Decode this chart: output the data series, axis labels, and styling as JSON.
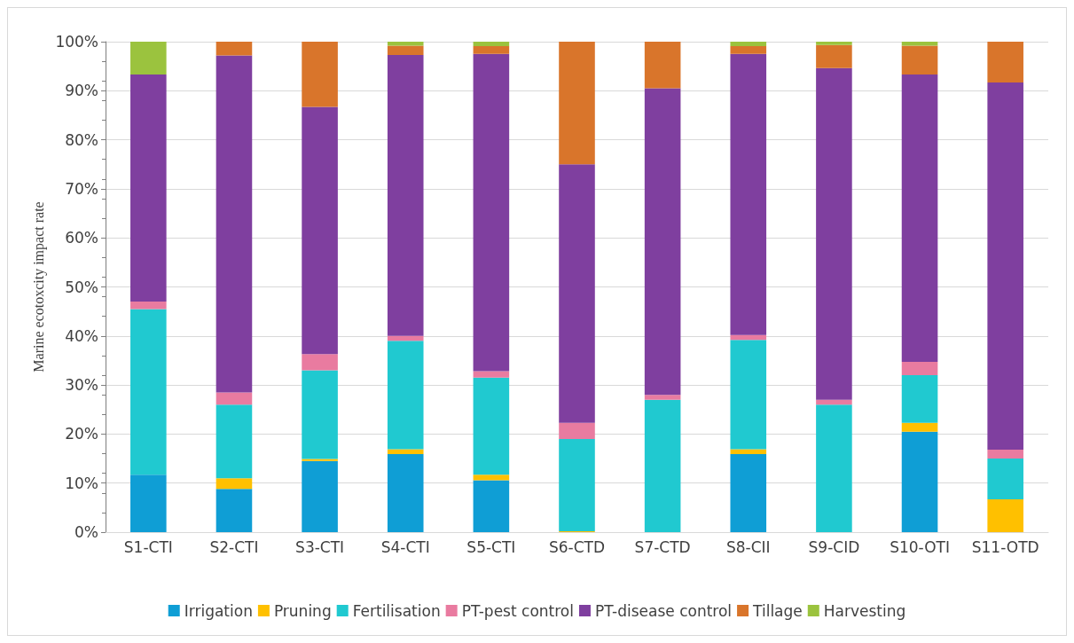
{
  "chart_data": {
    "type": "bar",
    "stacked": true,
    "ylabel": "Marine ecotoxcity impact rate",
    "categories": [
      "S1-CTI",
      "S2-CTI",
      "S3-CTI",
      "S4-CTI",
      "S5-CTI",
      "S6-CTD",
      "S7-CTD",
      "S8-CII",
      "S9-CID",
      "S10-OTI",
      "S11-OTD"
    ],
    "series": [
      {
        "name": "Irrigation",
        "color": "#0f9ed5",
        "values": [
          11.7,
          8.8,
          14.5,
          15.9,
          10.6,
          0,
          0,
          15.9,
          0,
          20.5,
          0
        ]
      },
      {
        "name": "Pruning",
        "color": "#ffc000",
        "values": [
          0,
          2.2,
          0.4,
          1,
          1.1,
          0.2,
          0,
          1,
          0,
          1.8,
          6.7
        ]
      },
      {
        "name": "Fertilisation",
        "color": "#20c9d0",
        "values": [
          33.8,
          15,
          18.1,
          22.1,
          19.8,
          18.8,
          27,
          22.3,
          26,
          9.7,
          8.3
        ]
      },
      {
        "name": "PT-pest control",
        "color": "#e97ba0",
        "values": [
          1.5,
          2.5,
          3.3,
          1,
          1.3,
          3.3,
          1,
          1,
          1,
          2.7,
          1.8
        ]
      },
      {
        "name": "PT-disease control",
        "color": "#7f3f9f",
        "values": [
          46.3,
          68.7,
          50.4,
          57.3,
          64.7,
          52.7,
          62.5,
          57.3,
          67.6,
          58.6,
          74.9
        ]
      },
      {
        "name": "Tillage",
        "color": "#d9752b",
        "values": [
          0,
          2.8,
          13.3,
          1.9,
          1.6,
          25,
          9.5,
          1.6,
          4.7,
          5.9,
          8.3
        ]
      },
      {
        "name": "Harvesting",
        "color": "#9bc33e",
        "values": [
          6.7,
          0,
          0,
          0.8,
          0.9,
          0,
          0,
          0.9,
          0.7,
          0.8,
          0
        ]
      }
    ],
    "ylim": [
      0,
      100
    ],
    "yticks": [
      {
        "value": 0,
        "label": "0%"
      },
      {
        "value": 10,
        "label": "10%"
      },
      {
        "value": 20,
        "label": "20%"
      },
      {
        "value": 30,
        "label": "30%"
      },
      {
        "value": 40,
        "label": "40%"
      },
      {
        "value": 50,
        "label": "50%"
      },
      {
        "value": 60,
        "label": "60%"
      },
      {
        "value": 70,
        "label": "70%"
      },
      {
        "value": 80,
        "label": "80%"
      },
      {
        "value": 90,
        "label": "90%"
      },
      {
        "value": 100,
        "label": "100%"
      }
    ],
    "grid": "y",
    "legend": "bottom"
  }
}
